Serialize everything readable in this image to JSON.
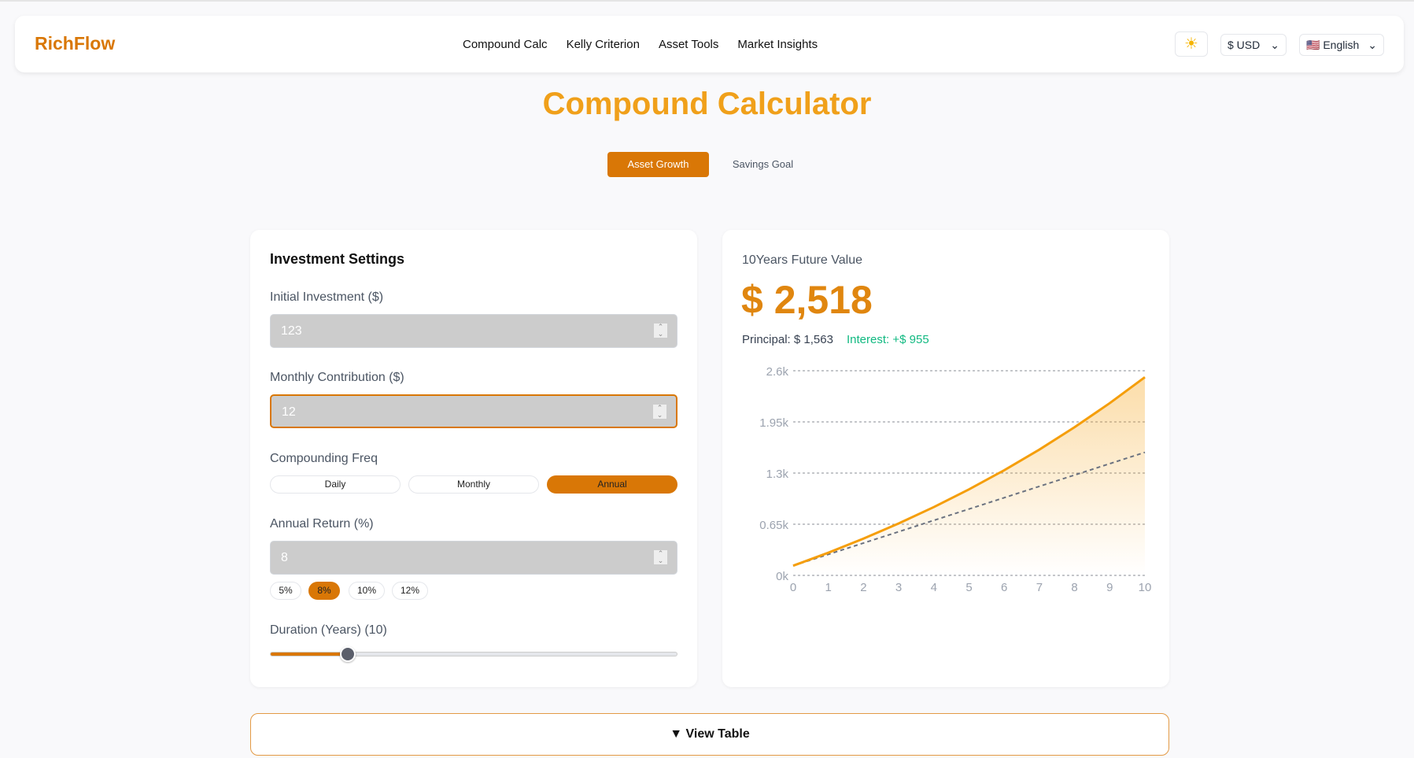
{
  "nav": {
    "logo": "RichFlow",
    "links": [
      "Compound Calc",
      "Kelly Criterion",
      "Asset Tools",
      "Market Insights"
    ],
    "theme_icon": "sun-icon",
    "currency": "$ USD",
    "language": "English",
    "flag": "🇺🇸"
  },
  "page": {
    "title": "Compound Calculator",
    "tabs": [
      "Asset Growth",
      "Savings Goal"
    ],
    "active_tab": "Asset Growth"
  },
  "settings": {
    "heading": "Investment Settings",
    "initial_label": "Initial Investment ($)",
    "initial_value": "123",
    "monthly_label": "Monthly Contribution ($)",
    "monthly_value": "12",
    "freq_label": "Compounding Freq",
    "freq_options": [
      "Daily",
      "Monthly",
      "Annual"
    ],
    "freq_selected": "Annual",
    "return_label": "Annual Return (%)",
    "return_value": "8",
    "return_presets": [
      "5%",
      "8%",
      "10%",
      "12%"
    ],
    "return_selected": "8%",
    "duration_label": "Duration (Years) (10)",
    "duration_value": 10,
    "duration_fill_percent": 19
  },
  "result": {
    "label": "10Years Future Value",
    "value": "$ 2,518",
    "principal": "Principal: $ 1,563",
    "interest": "Interest: +$ 955"
  },
  "colors": {
    "accent": "#d97706",
    "line": "#f59e0b",
    "interest": "#10b981"
  },
  "chart_data": {
    "type": "area",
    "x": [
      0,
      1,
      2,
      3,
      4,
      5,
      6,
      7,
      8,
      9,
      10
    ],
    "series": [
      {
        "values": [
          123,
          288,
          467,
          660,
          868,
          1093,
          1336,
          1598,
          1882,
          2188,
          2518
        ]
      },
      {
        "values": [
          123,
          267,
          411,
          555,
          699,
          843,
          987,
          1131,
          1275,
          1419,
          1563
        ]
      }
    ],
    "yticks": [
      "0k",
      "0.65k",
      "1.3k",
      "1.95k",
      "2.6k"
    ],
    "ylim": [
      0,
      2600
    ],
    "xlim": [
      0,
      10
    ],
    "grid": true
  },
  "table_toggle": "▼ View Table"
}
